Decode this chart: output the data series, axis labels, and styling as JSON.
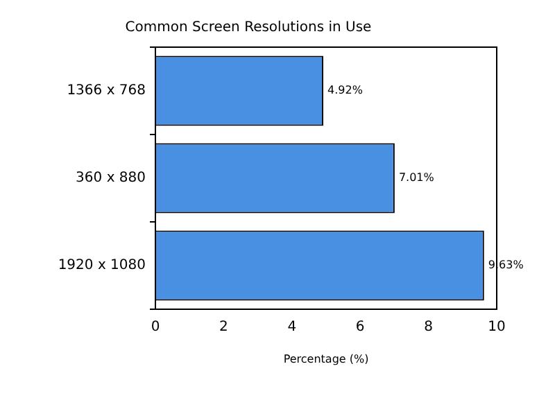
{
  "chart_data": {
    "type": "bar",
    "orientation": "horizontal",
    "title": "Common Screen Resolutions in Use",
    "xlabel": "Percentage (%)",
    "categories": [
      "1366 x 768",
      "360 x 880",
      "1920 x 1080"
    ],
    "values": [
      4.92,
      7.01,
      9.63
    ],
    "color": "#4a90e2",
    "value_labels": [
      "4.92%",
      "7.01%",
      "9.63%"
    ],
    "xlim": [
      0,
      10
    ],
    "xticks": [
      0,
      2,
      4,
      6,
      8,
      10
    ],
    "grid": false,
    "legend": false
  }
}
